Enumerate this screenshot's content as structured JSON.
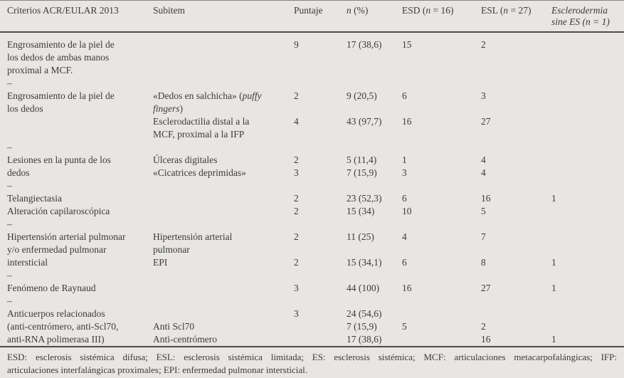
{
  "colors": {
    "background": "#e7e6e4",
    "text": "#3d3b39",
    "rule": "#4e4a46"
  },
  "table": {
    "header": [
      [
        {
          "t": "Criterios ACR/EULAR 2013"
        }
      ],
      [
        {
          "t": "Subitem"
        }
      ],
      [
        {
          "t": "Puntaje"
        }
      ],
      [
        {
          "t": "n",
          "i": true
        },
        {
          "t": " (%)"
        }
      ],
      [
        {
          "t": "ESD ("
        },
        {
          "t": "n",
          "i": true
        },
        {
          "t": " = 16)"
        }
      ],
      [
        {
          "t": "ESL ("
        },
        {
          "t": "n",
          "i": true
        },
        {
          "t": " = 27)"
        }
      ],
      [
        {
          "t": "Esclerodermia sine ES (n = 1)",
          "i": true
        }
      ]
    ],
    "rows": [
      {
        "cells": [
          "Engrosamiento de la piel de",
          "",
          "9",
          "17 (38,6)",
          "15",
          "2",
          ""
        ]
      },
      {
        "cells": [
          "los dedos de ambas manos",
          "",
          "",
          "",
          "",
          "",
          ""
        ]
      },
      {
        "cells": [
          "proximal a MCF.",
          "",
          "",
          "",
          "",
          "",
          ""
        ]
      },
      {
        "sep": true,
        "cells": [
          "–",
          "",
          "",
          "",
          "",
          "",
          ""
        ]
      },
      {
        "cells": [
          "Engrosamiento de la piel de",
          [
            {
              "t": "«Dedos en salchicha» ("
            },
            {
              "t": "puffy",
              "i": true
            }
          ],
          "2",
          "9 (20,5)",
          "6",
          "3",
          ""
        ]
      },
      {
        "cells": [
          "los dedos",
          [
            {
              "t": "fingers",
              "i": true
            },
            {
              "t": ")"
            }
          ],
          "",
          "",
          "",
          "",
          ""
        ]
      },
      {
        "cells": [
          "",
          "Esclerodactilia distal a la",
          "4",
          "43 (97,7)",
          "16",
          "27",
          ""
        ]
      },
      {
        "cells": [
          "",
          "MCF, proximal a la IFP",
          "",
          "",
          "",
          "",
          ""
        ]
      },
      {
        "sep": true,
        "cells": [
          "–",
          "",
          "",
          "",
          "",
          "",
          ""
        ]
      },
      {
        "cells": [
          "Lesiones en la punta de los",
          "Úlceras digitales",
          "2",
          "5 (11,4)",
          "1",
          "4",
          ""
        ]
      },
      {
        "cells": [
          "dedos",
          "«Cicatrices deprimidas»",
          "3",
          "7 (15,9)",
          "3",
          "4",
          ""
        ]
      },
      {
        "sep": true,
        "cells": [
          "–",
          "",
          "",
          "",
          "",
          "",
          ""
        ]
      },
      {
        "cells": [
          "Telangiectasia",
          "",
          "2",
          "23 (52,3)",
          "6",
          "16",
          "1"
        ]
      },
      {
        "cells": [
          "Alteración capilaroscópica",
          "",
          "2",
          "15 (34)",
          "10",
          "5",
          ""
        ]
      },
      {
        "sep": true,
        "cells": [
          "–",
          "",
          "",
          "",
          "",
          "",
          ""
        ]
      },
      {
        "cells": [
          "Hipertensión arterial pulmonar",
          "Hipertensión arterial",
          "2",
          "11 (25)",
          "4",
          "7",
          ""
        ]
      },
      {
        "cells": [
          "y/o enfermedad pulmonar",
          "pulmonar",
          "",
          "",
          "",
          "",
          ""
        ]
      },
      {
        "cells": [
          "intersticial",
          "EPI",
          "2",
          "15 (34,1)",
          "6",
          "8",
          "1"
        ]
      },
      {
        "sep": true,
        "cells": [
          "–",
          "",
          "",
          "",
          "",
          "",
          ""
        ]
      },
      {
        "cells": [
          "Fenómeno de Raynaud",
          "",
          "3",
          "44 (100)",
          "16",
          "27",
          "1"
        ]
      },
      {
        "sep": true,
        "cells": [
          "–",
          "",
          "",
          "",
          "",
          "",
          ""
        ]
      },
      {
        "cells": [
          "Anticuerpos relacionados",
          "",
          "3",
          "24 (54,6)",
          "",
          "",
          ""
        ]
      },
      {
        "cells": [
          "(anti-centrómero, anti-Scl70,",
          "Anti Scl70",
          "",
          "7 (15,9)",
          "5",
          "2",
          ""
        ]
      },
      {
        "cells": [
          "anti-RNA polimerasa III)",
          "Anti-centrómero",
          "",
          "17 (38,6)",
          "",
          "16",
          "1"
        ]
      }
    ]
  },
  "footer": {
    "line1": "ESD: esclerosis sistémica difusa; ESL: esclerosis sistémica limitada; ES: esclerosis sistémica; MCF: articulaciones metacarpofalángicas; IFP:",
    "line2": "articulaciones interfalángicas proximales; EPI: enfermedad pulmonar intersticial."
  }
}
